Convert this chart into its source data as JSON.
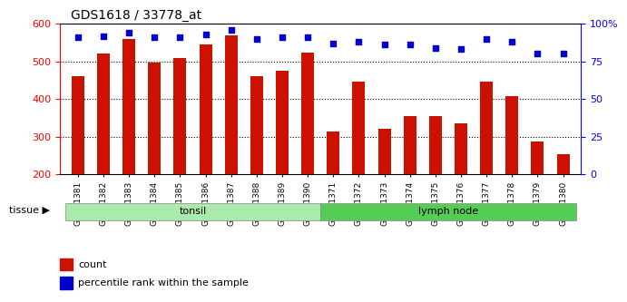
{
  "title": "GDS1618 / 33778_at",
  "categories": [
    "GSM51381",
    "GSM51382",
    "GSM51383",
    "GSM51384",
    "GSM51385",
    "GSM51386",
    "GSM51387",
    "GSM51388",
    "GSM51389",
    "GSM51390",
    "GSM51371",
    "GSM51372",
    "GSM51373",
    "GSM51374",
    "GSM51375",
    "GSM51376",
    "GSM51377",
    "GSM51378",
    "GSM51379",
    "GSM51380"
  ],
  "count_values": [
    460,
    520,
    560,
    498,
    508,
    545,
    570,
    460,
    475,
    523,
    313,
    445,
    320,
    355,
    355,
    335,
    445,
    408,
    287,
    253
  ],
  "percentile_values": [
    91,
    92,
    94,
    91,
    91,
    93,
    96,
    90,
    91,
    91,
    87,
    88,
    86,
    86,
    84,
    83,
    90,
    88,
    80,
    80
  ],
  "bar_color": "#cc1100",
  "dot_color": "#0000cc",
  "ylim_left": [
    200,
    600
  ],
  "ylim_right": [
    0,
    100
  ],
  "yticks_left": [
    200,
    300,
    400,
    500,
    600
  ],
  "yticks_right": [
    0,
    25,
    50,
    75,
    100
  ],
  "grid_values": [
    300,
    400,
    500
  ],
  "tissue_groups": [
    {
      "label": "tonsil",
      "start": 0,
      "end": 10,
      "color": "#90ee90"
    },
    {
      "label": "lymph node",
      "start": 10,
      "end": 20,
      "color": "#44cc44"
    }
  ],
  "tissue_label": "tissue",
  "legend_count_label": "count",
  "legend_pct_label": "percentile rank within the sample",
  "background_color": "#ffffff",
  "plot_bg_color": "#ffffff",
  "tick_area_color": "#d3d3d3"
}
